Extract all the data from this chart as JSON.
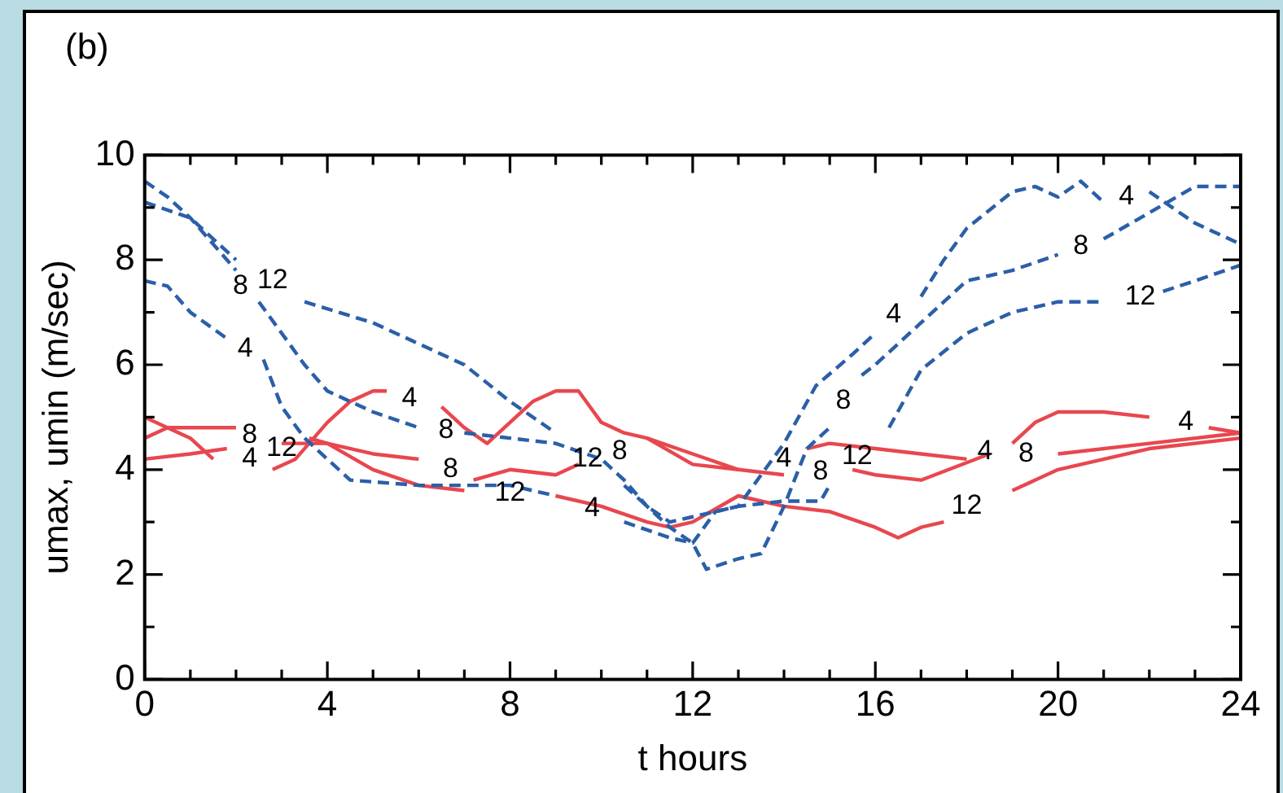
{
  "chart_data": {
    "type": "line",
    "title": "(b)",
    "xlabel": "t hours",
    "ylabel": "umax, umin (m/sec)",
    "xlim": [
      0,
      24
    ],
    "ylim": [
      0,
      10
    ],
    "xticks": [
      0,
      {
        "value": 1,
        "label": null
      },
      {
        "value": 2,
        "label": null
      },
      {
        "value": 3,
        "label": null
      },
      4,
      {
        "value": 5,
        "label": null
      },
      {
        "value": 6,
        "label": null
      },
      {
        "value": 7,
        "label": null
      },
      8,
      {
        "value": 9,
        "label": null
      },
      {
        "value": 10,
        "label": null
      },
      {
        "value": 11,
        "label": null
      },
      12,
      {
        "value": 13,
        "label": null
      },
      {
        "value": 14,
        "label": null
      },
      {
        "value": 15,
        "label": null
      },
      16,
      {
        "value": 17,
        "label": null
      },
      {
        "value": 18,
        "label": null
      },
      {
        "value": 19,
        "label": null
      },
      20,
      {
        "value": 21,
        "label": null
      },
      {
        "value": 22,
        "label": null
      },
      {
        "value": 23,
        "label": null
      },
      24
    ],
    "yticks": [
      0,
      {
        "value": 1,
        "label": null
      },
      2,
      {
        "value": 3,
        "label": null
      },
      4,
      {
        "value": 5,
        "label": null
      },
      6,
      {
        "value": 7,
        "label": null
      },
      8,
      {
        "value": 9,
        "label": null
      },
      10
    ],
    "grid": false,
    "legend": false,
    "marker": "none",
    "series": [
      {
        "name": "4",
        "color": "#2b5fa8",
        "line_style": "dashed",
        "x": [
          0,
          0.5,
          1,
          1.8,
          2.2,
          2.6,
          3,
          3.5,
          4,
          4.5,
          6,
          8,
          9,
          9.8,
          10.5,
          11.5,
          12,
          12.5,
          13,
          14,
          14.7,
          15.5,
          16,
          16.4,
          17,
          17.5,
          18,
          19,
          19.5,
          20,
          20.5,
          21,
          21.5,
          22,
          23,
          24
        ],
        "values": [
          7.6,
          7.5,
          7.0,
          6.5,
          null,
          6.1,
          5.2,
          4.6,
          4.2,
          3.8,
          3.7,
          3.7,
          3.5,
          null,
          3.0,
          2.7,
          2.6,
          3.2,
          3.3,
          4.5,
          5.6,
          6.2,
          6.6,
          null,
          7.3,
          8.0,
          8.6,
          9.3,
          9.4,
          9.2,
          9.5,
          9.1,
          null,
          9.3,
          8.7,
          8.3
        ]
      },
      {
        "name": "8",
        "color": "#2b5fa8",
        "line_style": "dashed",
        "x": [
          0,
          0.5,
          1,
          1.5,
          2,
          2.1,
          2.5,
          3.5,
          4,
          5,
          6,
          6.6,
          7,
          8,
          9,
          10,
          10.5,
          11,
          11.5,
          12,
          12.3,
          13,
          13.5,
          14,
          14.5,
          15,
          15.3,
          15.7,
          16,
          17,
          17.5,
          18,
          19,
          20,
          20.5,
          21,
          22,
          23,
          24
        ],
        "values": [
          9.5,
          9.2,
          8.8,
          8.3,
          7.8,
          null,
          7.2,
          6.0,
          5.5,
          5.1,
          4.8,
          null,
          4.7,
          4.6,
          4.5,
          4.2,
          3.8,
          3.3,
          2.9,
          2.6,
          2.1,
          2.3,
          2.4,
          3.3,
          4.4,
          4.8,
          null,
          5.8,
          6.0,
          6.8,
          7.2,
          7.6,
          7.8,
          8.1,
          null,
          8.4,
          8.9,
          9.4,
          9.4
        ]
      },
      {
        "name": "12",
        "color": "#2b5fa8",
        "line_style": "dashed",
        "x": [
          0,
          1,
          2,
          2.8,
          3.5,
          5,
          7,
          8,
          9,
          9.7,
          10.5,
          11,
          11.5,
          12,
          13,
          14,
          14.8,
          15,
          15.6,
          16.3,
          17,
          18,
          19,
          20,
          21,
          21.8,
          22.3,
          23,
          24
        ],
        "values": [
          9.1,
          8.8,
          8.0,
          null,
          7.2,
          6.8,
          6.0,
          5.3,
          4.7,
          null,
          3.7,
          3.3,
          3.0,
          3.1,
          3.3,
          3.4,
          3.4,
          3.7,
          null,
          4.8,
          5.9,
          6.6,
          7.0,
          7.2,
          7.2,
          null,
          7.4,
          7.6,
          7.9
        ]
      },
      {
        "name": "4",
        "color": "#e8474f",
        "line_style": "solid",
        "x": [
          0,
          1,
          1.8,
          2.3,
          2.8,
          3.3,
          4,
          4.5,
          5,
          5.3,
          5.8,
          6.5,
          7,
          7.5,
          8.5,
          9,
          9.5,
          10,
          10.5,
          11,
          12,
          13,
          14,
          14.5,
          15,
          16,
          17,
          18,
          18.4,
          19,
          19.5,
          20,
          21,
          22,
          22.8,
          23.3,
          24
        ],
        "values": [
          4.2,
          4.3,
          4.4,
          null,
          4.0,
          4.2,
          4.9,
          5.3,
          5.5,
          5.5,
          null,
          5.2,
          4.8,
          4.5,
          5.3,
          5.5,
          5.5,
          4.9,
          4.7,
          4.6,
          4.1,
          4.0,
          null,
          4.4,
          4.5,
          4.4,
          4.3,
          4.2,
          null,
          4.5,
          4.9,
          5.1,
          5.1,
          5.0,
          null,
          4.8,
          4.7
        ]
      },
      {
        "name": "8",
        "color": "#e8474f",
        "line_style": "solid",
        "x": [
          0,
          0.5,
          1,
          2,
          2.3,
          3,
          4,
          5,
          6,
          6.7,
          7.2,
          8,
          9,
          9.5,
          10.4,
          11,
          12,
          13,
          14,
          14.8,
          15.5,
          16,
          17,
          18.5,
          19.3,
          20,
          22,
          24
        ],
        "values": [
          4.6,
          4.8,
          4.8,
          4.8,
          null,
          4.5,
          4.5,
          4.3,
          4.2,
          null,
          3.8,
          4.0,
          3.9,
          4.1,
          null,
          4.6,
          4.3,
          4.0,
          3.9,
          null,
          4.0,
          3.9,
          3.8,
          4.3,
          null,
          4.3,
          4.5,
          4.7
        ]
      },
      {
        "name": "12",
        "color": "#e8474f",
        "line_style": "solid",
        "x": [
          0,
          1,
          1.5,
          3.0,
          3.6,
          4,
          5,
          6,
          7,
          8,
          9,
          10,
          11,
          11.5,
          12,
          13,
          14,
          15,
          16,
          16.5,
          17,
          17.5,
          18,
          19,
          20,
          22,
          24
        ],
        "values": [
          5.0,
          4.6,
          4.2,
          null,
          4.6,
          4.5,
          4.0,
          3.7,
          3.6,
          null,
          3.5,
          3.3,
          3.0,
          2.9,
          3.0,
          3.5,
          3.3,
          3.2,
          2.9,
          2.7,
          2.9,
          3.0,
          null,
          3.6,
          4.0,
          4.4,
          4.6
        ]
      }
    ]
  }
}
